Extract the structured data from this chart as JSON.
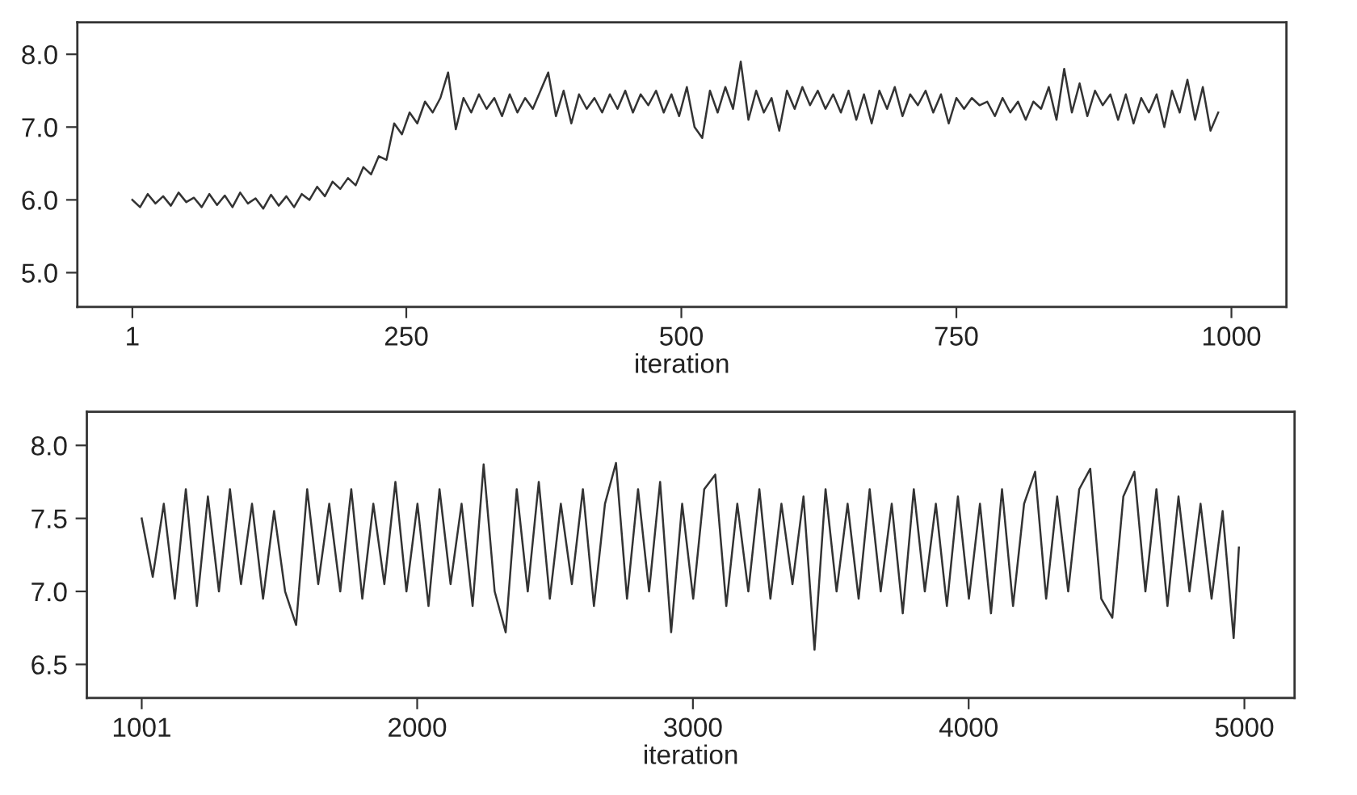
{
  "chart_data": [
    {
      "type": "line",
      "xlabel": "iteration",
      "xlim": [
        -49,
        1050
      ],
      "ylim": [
        4.53,
        8.44
      ],
      "xticks": [
        1,
        250,
        500,
        750,
        1000
      ],
      "yticks": [
        {
          "value": 5,
          "label": "5.0"
        },
        {
          "value": 6,
          "label": "6.0"
        },
        {
          "value": 7,
          "label": "7.0"
        },
        {
          "value": 8,
          "label": "8.0"
        }
      ],
      "series": [
        {
          "color": "#333333",
          "x": [
            1,
            8,
            15,
            22,
            29,
            36,
            43,
            50,
            57,
            64,
            71,
            78,
            85,
            92,
            99,
            106,
            113,
            120,
            127,
            134,
            141,
            148,
            155,
            162,
            169,
            176,
            183,
            190,
            197,
            204,
            211,
            218,
            225,
            232,
            239,
            246,
            253,
            260,
            267,
            274,
            281,
            288,
            295,
            302,
            309,
            316,
            323,
            330,
            337,
            344,
            351,
            358,
            365,
            372,
            379,
            386,
            393,
            400,
            407,
            414,
            421,
            428,
            435,
            442,
            449,
            456,
            463,
            470,
            477,
            484,
            491,
            498,
            505,
            512,
            519,
            526,
            533,
            540,
            547,
            554,
            561,
            568,
            575,
            582,
            589,
            596,
            603,
            610,
            617,
            624,
            631,
            638,
            645,
            652,
            659,
            666,
            673,
            680,
            687,
            694,
            701,
            708,
            715,
            722,
            729,
            736,
            743,
            750,
            757,
            764,
            771,
            778,
            785,
            792,
            799,
            806,
            813,
            820,
            827,
            834,
            841,
            848,
            855,
            862,
            869,
            876,
            883,
            890,
            897,
            904,
            911,
            918,
            925,
            932,
            939,
            946,
            953,
            960,
            967,
            974,
            981,
            988
          ],
          "values": [
            6.0,
            5.9,
            6.08,
            5.95,
            6.05,
            5.92,
            6.1,
            5.97,
            6.03,
            5.9,
            6.08,
            5.93,
            6.06,
            5.9,
            6.1,
            5.95,
            6.02,
            5.88,
            6.07,
            5.92,
            6.05,
            5.9,
            6.08,
            6.0,
            6.18,
            6.05,
            6.25,
            6.15,
            6.3,
            6.2,
            6.45,
            6.35,
            6.6,
            6.55,
            7.05,
            6.9,
            7.2,
            7.05,
            7.35,
            7.2,
            7.4,
            7.75,
            6.97,
            7.4,
            7.2,
            7.45,
            7.25,
            7.4,
            7.15,
            7.45,
            7.2,
            7.4,
            7.25,
            7.5,
            7.75,
            7.15,
            7.5,
            7.05,
            7.45,
            7.25,
            7.4,
            7.2,
            7.45,
            7.25,
            7.5,
            7.2,
            7.45,
            7.3,
            7.5,
            7.2,
            7.45,
            7.15,
            7.55,
            7.0,
            6.85,
            7.5,
            7.2,
            7.55,
            7.25,
            7.9,
            7.1,
            7.5,
            7.2,
            7.4,
            6.95,
            7.5,
            7.25,
            7.55,
            7.3,
            7.5,
            7.25,
            7.45,
            7.2,
            7.5,
            7.1,
            7.45,
            7.05,
            7.5,
            7.25,
            7.55,
            7.15,
            7.45,
            7.3,
            7.5,
            7.2,
            7.45,
            7.05,
            7.4,
            7.25,
            7.4,
            7.3,
            7.35,
            7.15,
            7.4,
            7.2,
            7.35,
            7.1,
            7.35,
            7.25,
            7.55,
            7.1,
            7.8,
            7.2,
            7.6,
            7.15,
            7.5,
            7.3,
            7.45,
            7.1,
            7.45,
            7.05,
            7.4,
            7.2,
            7.45,
            7.0,
            7.5,
            7.2,
            7.65,
            7.1,
            7.55,
            6.95,
            7.2
          ]
        }
      ]
    },
    {
      "type": "line",
      "xlabel": "iteration",
      "xlim": [
        802,
        5182
      ],
      "ylim": [
        6.27,
        8.23
      ],
      "xticks": [
        1001,
        2000,
        3000,
        4000,
        5000
      ],
      "yticks": [
        {
          "value": 6.5,
          "label": "6.5"
        },
        {
          "value": 7,
          "label": "7.0"
        },
        {
          "value": 7.5,
          "label": "7.5"
        },
        {
          "value": 8,
          "label": "8.0"
        }
      ],
      "series": [
        {
          "color": "#333333",
          "x": [
            1001,
            1041,
            1081,
            1121,
            1161,
            1201,
            1241,
            1281,
            1321,
            1361,
            1401,
            1441,
            1481,
            1521,
            1561,
            1601,
            1641,
            1681,
            1721,
            1761,
            1801,
            1841,
            1881,
            1921,
            1961,
            2001,
            2041,
            2081,
            2121,
            2161,
            2201,
            2241,
            2281,
            2321,
            2361,
            2401,
            2441,
            2481,
            2521,
            2561,
            2601,
            2641,
            2681,
            2721,
            2761,
            2801,
            2841,
            2881,
            2921,
            2961,
            3001,
            3041,
            3081,
            3121,
            3161,
            3201,
            3241,
            3281,
            3321,
            3361,
            3401,
            3441,
            3481,
            3521,
            3561,
            3601,
            3641,
            3681,
            3721,
            3761,
            3801,
            3841,
            3881,
            3921,
            3961,
            4001,
            4041,
            4081,
            4121,
            4161,
            4201,
            4241,
            4281,
            4321,
            4361,
            4401,
            4441,
            4481,
            4521,
            4561,
            4601,
            4641,
            4681,
            4721,
            4761,
            4801,
            4841,
            4881,
            4921,
            4961,
            4980
          ],
          "values": [
            7.5,
            7.1,
            7.6,
            6.95,
            7.7,
            6.9,
            7.65,
            7.0,
            7.7,
            7.05,
            7.6,
            6.95,
            7.55,
            7.0,
            6.77,
            7.7,
            7.05,
            7.6,
            7.0,
            7.7,
            6.95,
            7.6,
            7.05,
            7.75,
            7.0,
            7.6,
            6.9,
            7.7,
            7.05,
            7.6,
            6.9,
            7.87,
            7.0,
            6.72,
            7.7,
            7.0,
            7.75,
            6.95,
            7.6,
            7.05,
            7.7,
            6.9,
            7.6,
            7.88,
            6.95,
            7.7,
            7.0,
            7.75,
            6.72,
            7.6,
            6.95,
            7.7,
            7.8,
            6.9,
            7.6,
            7.0,
            7.7,
            6.95,
            7.6,
            7.05,
            7.65,
            6.6,
            7.7,
            7.0,
            7.6,
            6.95,
            7.7,
            7.0,
            7.6,
            6.85,
            7.7,
            7.0,
            7.6,
            6.9,
            7.65,
            6.95,
            7.6,
            6.85,
            7.7,
            6.9,
            7.6,
            7.82,
            6.95,
            7.65,
            7.0,
            7.7,
            7.84,
            6.95,
            6.82,
            7.65,
            7.82,
            7.0,
            7.7,
            6.9,
            7.65,
            7.0,
            7.6,
            6.95,
            7.55,
            6.68,
            7.3
          ]
        }
      ]
    }
  ]
}
